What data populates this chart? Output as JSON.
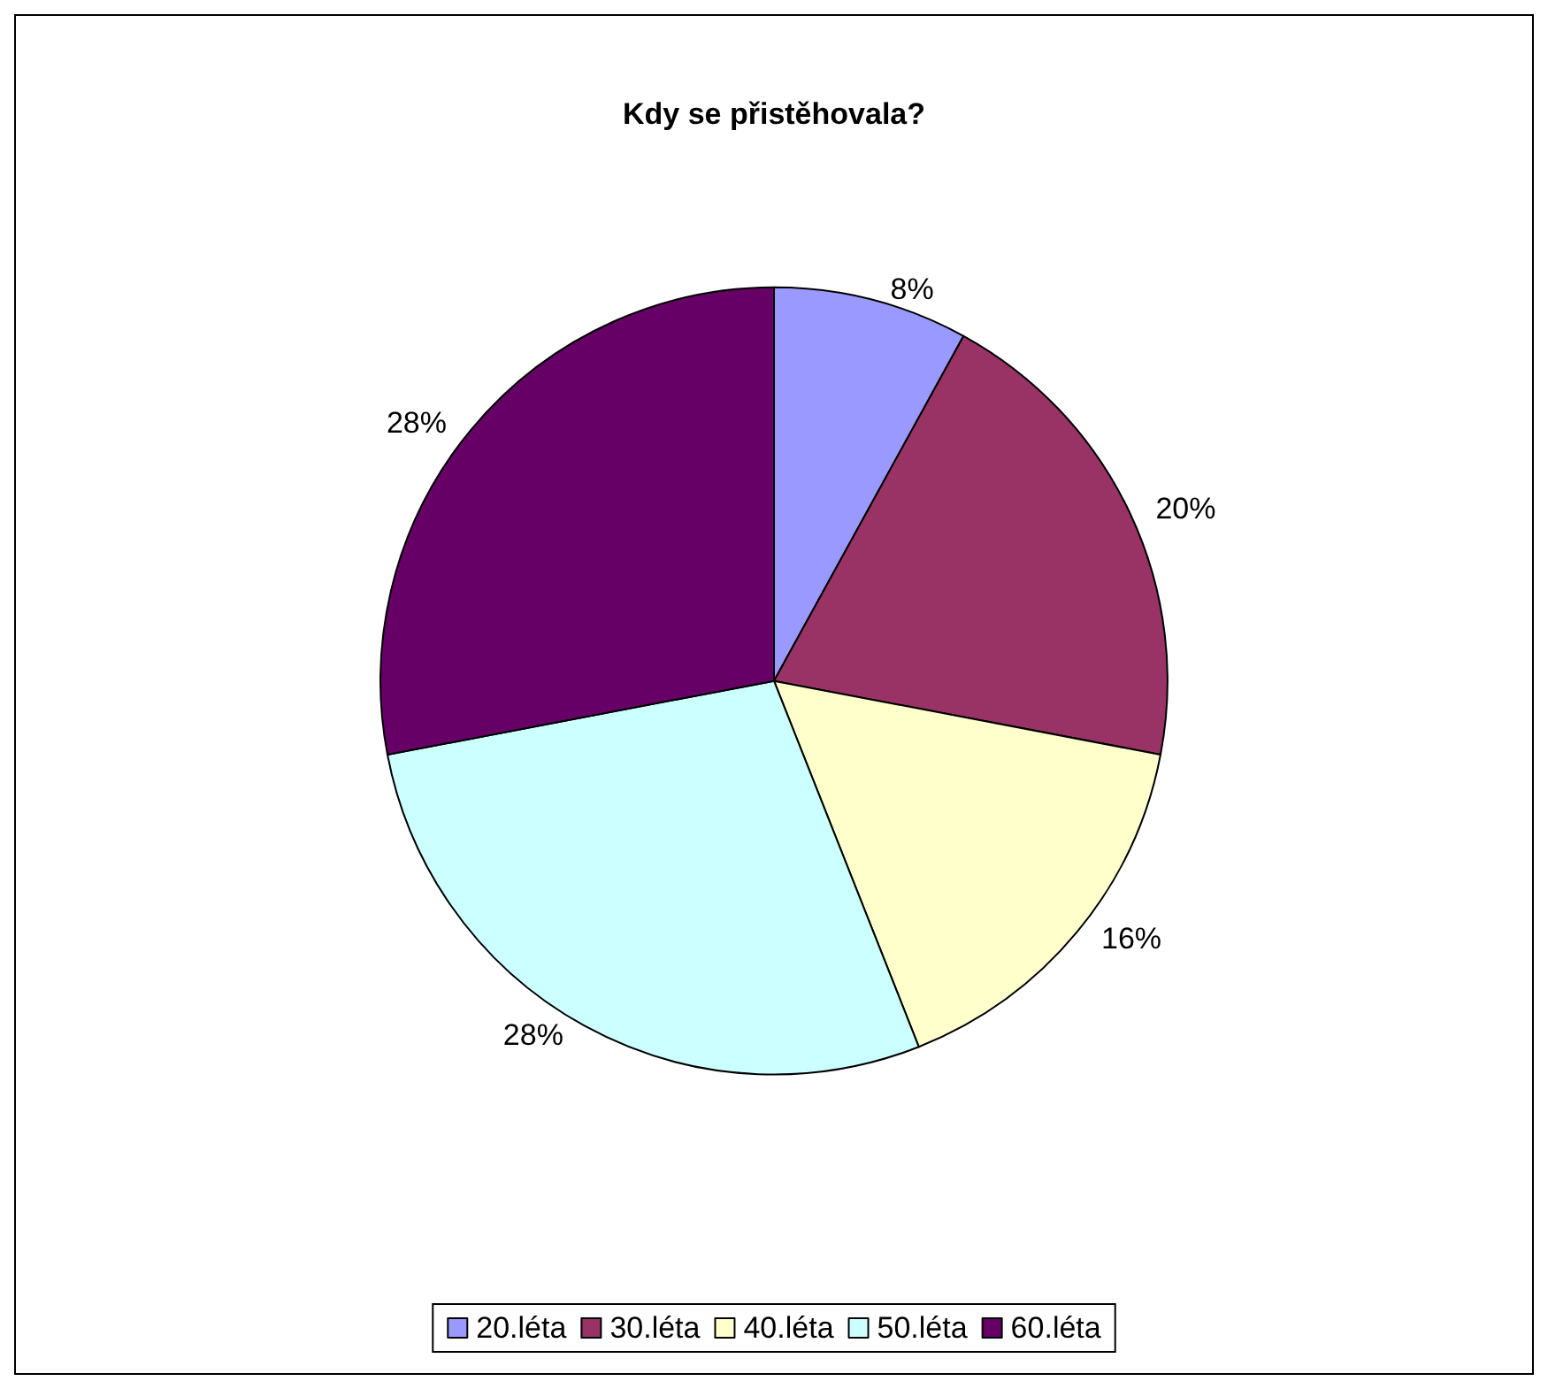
{
  "chart_data": {
    "type": "pie",
    "title": "Kdy se přistěhovala?",
    "categories": [
      "20.léta",
      "30.léta",
      "40.léta",
      "50.léta",
      "60.léta"
    ],
    "values": [
      8,
      20,
      16,
      28,
      28
    ],
    "value_labels": [
      "8%",
      "20%",
      "16%",
      "28%",
      "28%"
    ],
    "colors": [
      "#9999ff",
      "#993366",
      "#ffffcc",
      "#ccffff",
      "#660066"
    ],
    "legend": "bottom"
  }
}
